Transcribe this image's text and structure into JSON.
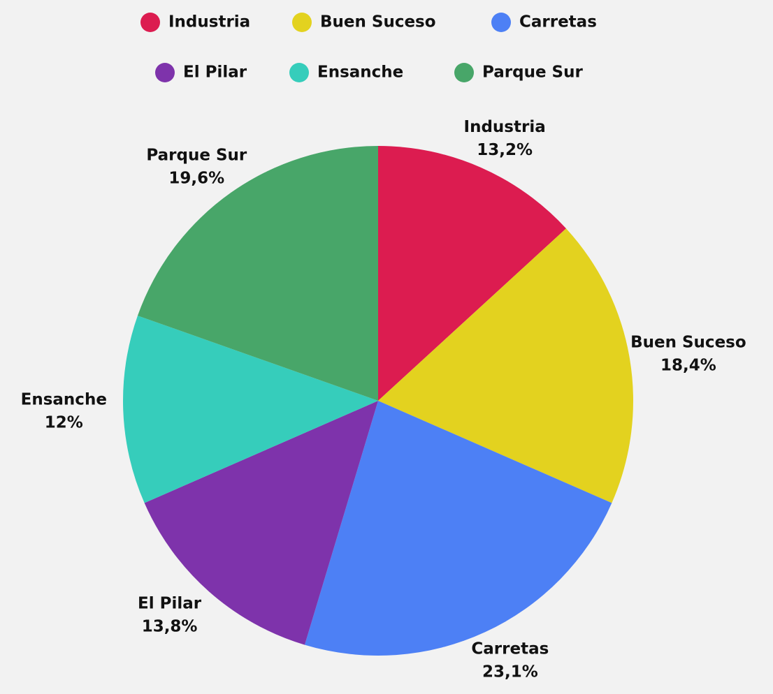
{
  "chart_data": {
    "type": "pie",
    "categories": [
      "Industria",
      "Buen Suceso",
      "Carretas",
      "El Pilar",
      "Ensanche",
      "Parque Sur"
    ],
    "values": [
      13.2,
      18.4,
      23.1,
      13.8,
      12,
      19.6
    ],
    "value_labels": [
      "13,2%",
      "18,4%",
      "23,1%",
      "13,8%",
      "12%",
      "19,6%"
    ],
    "colors": [
      "#dc1c50",
      "#e3d21f",
      "#4d80f5",
      "#7e33ab",
      "#36cdbb",
      "#48a669"
    ],
    "legend": "top"
  }
}
